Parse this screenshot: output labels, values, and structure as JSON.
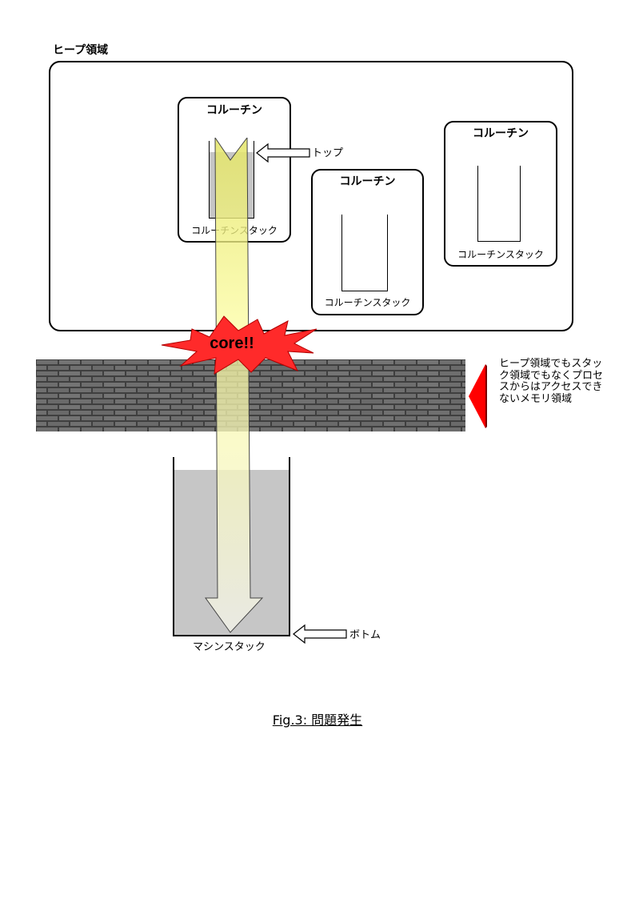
{
  "heap": {
    "label": "ヒープ領域"
  },
  "coroutines": [
    {
      "title": "コルーチン",
      "stack_label": "コルーチンスタック"
    },
    {
      "title": "コルーチン",
      "stack_label": "コルーチンスタック"
    },
    {
      "title": "コルーチン",
      "stack_label": "コルーチンスタック"
    }
  ],
  "labels": {
    "top": "トップ",
    "bottom": "ボトム",
    "machine_stack": "マシンスタック",
    "core": "core!!",
    "forbidden_memory": "ヒープ領域でもスタック領域でもなくプロセスからはアクセスできないメモリ領域"
  },
  "caption": "Fig.3: 問題発生",
  "colors": {
    "beam_top": "#e6e86a",
    "beam_bottom": "#f2f2ea",
    "explosion": "#ff2a2a",
    "stack_fill": "#c6c6c6",
    "wall": "#4a4a4a",
    "red_arrow": "#ff0000"
  }
}
